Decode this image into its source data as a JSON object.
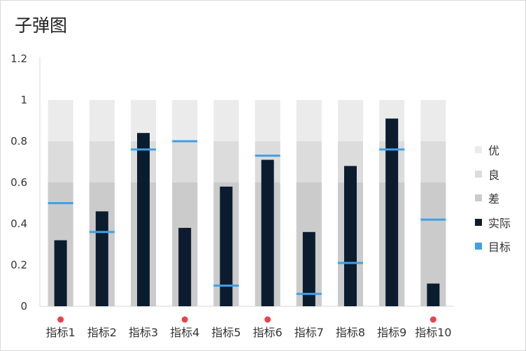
{
  "chart_data": {
    "type": "bar",
    "title": "子弹图",
    "xlabel": "",
    "ylabel": "",
    "ylim": [
      0,
      1.2
    ],
    "yticks": [
      "0",
      "0.2",
      "0.4",
      "0.6",
      "0.8",
      "1",
      "1.2"
    ],
    "categories": [
      "指标1",
      "指标2",
      "指标3",
      "指标4",
      "指标5",
      "指标6",
      "指标7",
      "指标8",
      "指标9",
      "指标10"
    ],
    "bands": [
      {
        "name": "差",
        "value": 0.6,
        "color": "#cbcbcb"
      },
      {
        "name": "良",
        "value": 0.8,
        "color": "#dcdcdc"
      },
      {
        "name": "优",
        "value": 1.0,
        "color": "#ebebeb"
      }
    ],
    "series": [
      {
        "name": "实际",
        "type": "bar",
        "color": "#0b1c2e",
        "values": [
          0.32,
          0.46,
          0.84,
          0.38,
          0.58,
          0.71,
          0.36,
          0.68,
          0.91,
          0.11
        ]
      },
      {
        "name": "目标",
        "type": "marker",
        "color": "#3fa0e6",
        "values": [
          0.5,
          0.36,
          0.76,
          0.8,
          0.1,
          0.73,
          0.06,
          0.21,
          0.76,
          0.42
        ]
      }
    ],
    "flags": [
      true,
      false,
      false,
      true,
      false,
      true,
      false,
      false,
      false,
      true
    ],
    "flag_color": "#e8434a",
    "legend": {
      "position": "right",
      "items": [
        "优",
        "良",
        "差",
        "实际",
        "目标"
      ]
    },
    "grid": false
  }
}
